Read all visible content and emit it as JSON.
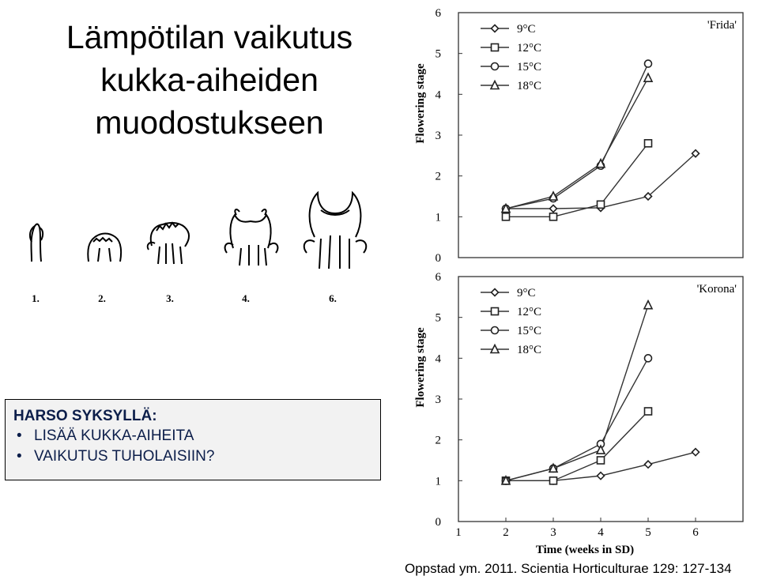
{
  "slide": {
    "title_lines": [
      "Lämpötilan vaikutus",
      "kukka-aiheiden",
      "muodostukseen"
    ],
    "stage_labels": [
      "1.",
      "2.",
      "3.",
      "4.",
      "6."
    ],
    "note": {
      "heading": "HARSO SYKSYLLÄ:",
      "bullets": [
        "LISÄÄ KUKKA-AIHEITA",
        "VAIKUTUS TUHOLAISIIN?"
      ]
    },
    "citation": "Oppstad ym. 2011. Scientia Horticulturae 129: 127-134"
  },
  "colors": {
    "text": "#000000",
    "note_text": "#0c1e4a",
    "note_bg": "#f2f2f2",
    "chart_line": "#333333"
  },
  "chart_data": [
    {
      "type": "line",
      "title": "'Frida'",
      "xlabel": "",
      "ylabel": "Flowering stage",
      "x_ticks": [],
      "y_ticks": [
        "0",
        "1",
        "2",
        "3",
        "4",
        "5",
        "6"
      ],
      "xlim": [
        1,
        7
      ],
      "ylim": [
        0,
        6
      ],
      "legend_position": "top-left",
      "series": [
        {
          "name": "9°C",
          "marker": "diamond",
          "x": [
            2,
            3,
            4,
            5,
            6
          ],
          "y": [
            1.2,
            1.2,
            1.22,
            1.5,
            2.55
          ]
        },
        {
          "name": "12°C",
          "marker": "square",
          "x": [
            2,
            3,
            4,
            5
          ],
          "y": [
            1.0,
            1.0,
            1.3,
            2.8
          ]
        },
        {
          "name": "15°C",
          "marker": "circle",
          "x": [
            2,
            3,
            4,
            5
          ],
          "y": [
            1.2,
            1.45,
            2.25,
            4.75
          ]
        },
        {
          "name": "18°C",
          "marker": "triangle",
          "x": [
            2,
            3,
            4,
            5
          ],
          "y": [
            1.2,
            1.5,
            2.3,
            4.4
          ]
        }
      ]
    },
    {
      "type": "line",
      "title": "'Korona'",
      "xlabel": "Time (weeks in SD)",
      "ylabel": "Flowering stage",
      "x_ticks": [
        "1",
        "2",
        "3",
        "4",
        "5",
        "6"
      ],
      "y_ticks": [
        "0",
        "1",
        "2",
        "3",
        "4",
        "5",
        "6"
      ],
      "xlim": [
        1,
        7
      ],
      "ylim": [
        0,
        6
      ],
      "legend_position": "top-left",
      "series": [
        {
          "name": "9°C",
          "marker": "diamond",
          "x": [
            2,
            3,
            4,
            5,
            6
          ],
          "y": [
            1.0,
            1.0,
            1.12,
            1.4,
            1.7
          ]
        },
        {
          "name": "12°C",
          "marker": "square",
          "x": [
            2,
            3,
            4,
            5
          ],
          "y": [
            1.0,
            1.0,
            1.5,
            2.7
          ]
        },
        {
          "name": "15°C",
          "marker": "circle",
          "x": [
            2,
            3,
            4,
            5
          ],
          "y": [
            1.0,
            1.3,
            1.9,
            4.0
          ]
        },
        {
          "name": "18°C",
          "marker": "triangle",
          "x": [
            2,
            3,
            4,
            5
          ],
          "y": [
            1.0,
            1.3,
            1.75,
            5.3
          ]
        }
      ]
    }
  ]
}
